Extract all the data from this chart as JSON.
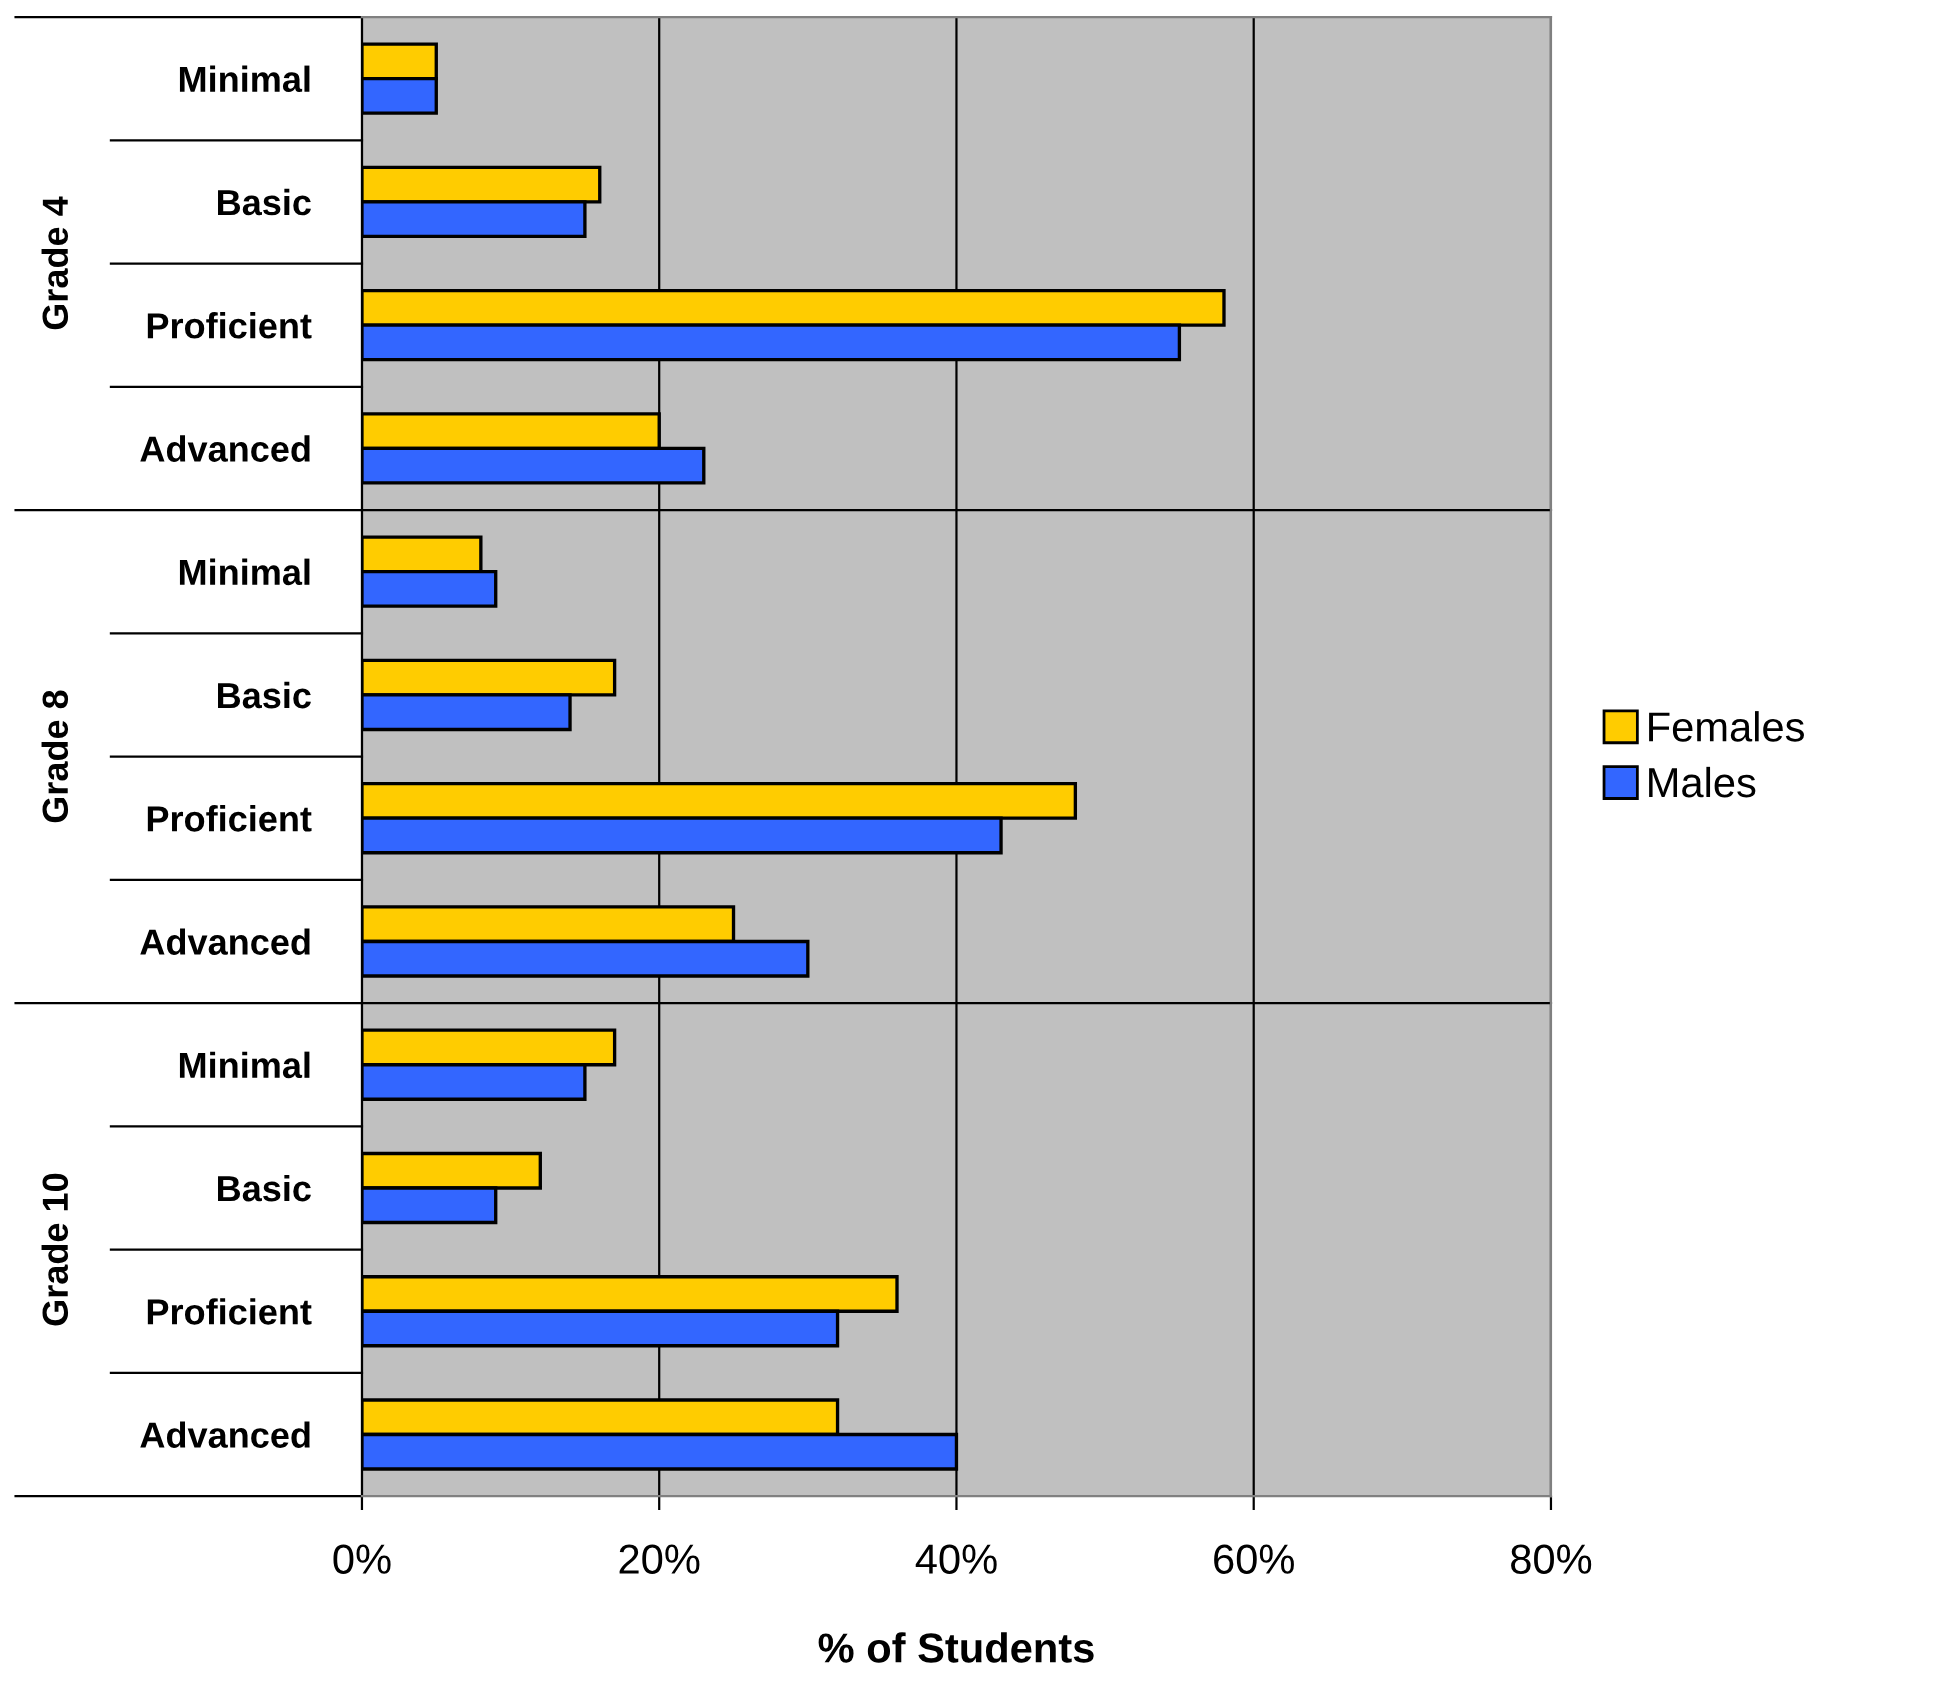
{
  "chart_data": {
    "type": "bar",
    "orientation": "horizontal",
    "xlabel": "% of Students",
    "categories": [
      "Minimal",
      "Basic",
      "Proficient",
      "Advanced",
      "Minimal",
      "Basic",
      "Proficient",
      "Advanced",
      "Minimal",
      "Basic",
      "Proficient",
      "Advanced"
    ],
    "annotations": [
      "Grade 4",
      "Grade 8",
      "Grade 10"
    ],
    "series": [
      {
        "name": "Females",
        "color": "#ffcc00",
        "values": [
          5,
          16,
          58,
          20,
          8,
          17,
          48,
          25,
          17,
          12,
          36,
          32
        ]
      },
      {
        "name": "Males",
        "color": "#3366ff",
        "values": [
          5,
          15,
          55,
          23,
          9,
          14,
          43,
          30,
          15,
          9,
          32,
          40
        ]
      }
    ],
    "xlim": [
      0,
      80
    ],
    "xticks": [
      {
        "value": 0,
        "label": "0%"
      },
      {
        "value": 20,
        "label": "20%"
      },
      {
        "value": 40,
        "label": "40%"
      },
      {
        "value": 60,
        "label": "60%"
      },
      {
        "value": 80,
        "label": "80%"
      }
    ],
    "grid": "x",
    "legend": "right"
  }
}
